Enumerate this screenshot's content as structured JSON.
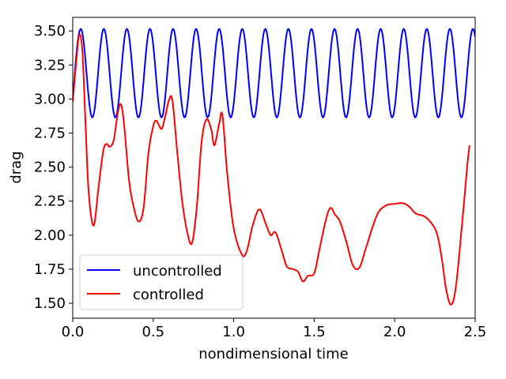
{
  "chart_data": {
    "type": "line",
    "xlabel": "nondimensional time",
    "ylabel": "drag",
    "xlim": [
      0.0,
      2.5
    ],
    "ylim": [
      1.39,
      3.6
    ],
    "x_ticks": [
      0.0,
      0.5,
      1.0,
      1.5,
      2.0,
      2.5
    ],
    "x_tick_labels": [
      "0.0",
      "0.5",
      "1.0",
      "1.5",
      "2.0",
      "2.5"
    ],
    "y_ticks": [
      1.5,
      1.75,
      2.0,
      2.25,
      2.5,
      2.75,
      3.0,
      3.25,
      3.5
    ],
    "y_tick_labels": [
      "1.50",
      "1.75",
      "2.00",
      "2.25",
      "2.50",
      "2.75",
      "3.00",
      "3.25",
      "3.50"
    ],
    "grid": false,
    "legend": {
      "position": "lower-left"
    },
    "series": [
      {
        "name": "uncontrolled",
        "color": "#0000ff",
        "style": "sinusoid",
        "mean": 3.19,
        "amplitude": 0.325,
        "period": 0.1433,
        "start_value": 2.98,
        "first_peak_x": 0.05
      },
      {
        "name": "controlled",
        "color": "#ff0000",
        "style": "smooth",
        "points": [
          [
            0.0,
            2.98
          ],
          [
            0.02,
            3.25
          ],
          [
            0.04,
            3.47
          ],
          [
            0.06,
            3.35
          ],
          [
            0.08,
            2.8
          ],
          [
            0.1,
            2.3
          ],
          [
            0.13,
            2.07
          ],
          [
            0.16,
            2.35
          ],
          [
            0.19,
            2.62
          ],
          [
            0.21,
            2.67
          ],
          [
            0.23,
            2.65
          ],
          [
            0.255,
            2.7
          ],
          [
            0.28,
            2.9
          ],
          [
            0.3,
            2.96
          ],
          [
            0.32,
            2.8
          ],
          [
            0.35,
            2.4
          ],
          [
            0.38,
            2.2
          ],
          [
            0.41,
            2.1
          ],
          [
            0.44,
            2.2
          ],
          [
            0.47,
            2.6
          ],
          [
            0.5,
            2.8
          ],
          [
            0.52,
            2.84
          ],
          [
            0.55,
            2.78
          ],
          [
            0.57,
            2.85
          ],
          [
            0.6,
            3.0
          ],
          [
            0.62,
            2.98
          ],
          [
            0.65,
            2.6
          ],
          [
            0.68,
            2.25
          ],
          [
            0.71,
            2.03
          ],
          [
            0.74,
            1.94
          ],
          [
            0.77,
            2.2
          ],
          [
            0.8,
            2.68
          ],
          [
            0.83,
            2.85
          ],
          [
            0.86,
            2.78
          ],
          [
            0.88,
            2.66
          ],
          [
            0.91,
            2.82
          ],
          [
            0.93,
            2.88
          ],
          [
            0.96,
            2.45
          ],
          [
            1.0,
            2.05
          ],
          [
            1.05,
            1.86
          ],
          [
            1.08,
            1.88
          ],
          [
            1.12,
            2.08
          ],
          [
            1.16,
            2.19
          ],
          [
            1.2,
            2.08
          ],
          [
            1.23,
            2.0
          ],
          [
            1.26,
            2.02
          ],
          [
            1.3,
            1.88
          ],
          [
            1.33,
            1.77
          ],
          [
            1.37,
            1.75
          ],
          [
            1.4,
            1.73
          ],
          [
            1.43,
            1.66
          ],
          [
            1.46,
            1.7
          ],
          [
            1.5,
            1.72
          ],
          [
            1.53,
            1.88
          ],
          [
            1.57,
            2.1
          ],
          [
            1.6,
            2.2
          ],
          [
            1.63,
            2.15
          ],
          [
            1.66,
            2.1
          ],
          [
            1.7,
            1.95
          ],
          [
            1.74,
            1.78
          ],
          [
            1.78,
            1.76
          ],
          [
            1.82,
            1.9
          ],
          [
            1.86,
            2.05
          ],
          [
            1.9,
            2.17
          ],
          [
            1.95,
            2.22
          ],
          [
            2.0,
            2.23
          ],
          [
            2.05,
            2.235
          ],
          [
            2.09,
            2.21
          ],
          [
            2.13,
            2.16
          ],
          [
            2.18,
            2.14
          ],
          [
            2.22,
            2.1
          ],
          [
            2.26,
            2.02
          ],
          [
            2.29,
            1.85
          ],
          [
            2.32,
            1.6
          ],
          [
            2.35,
            1.49
          ],
          [
            2.38,
            1.62
          ],
          [
            2.42,
            2.1
          ],
          [
            2.45,
            2.5
          ],
          [
            2.465,
            2.66
          ]
        ]
      }
    ]
  }
}
